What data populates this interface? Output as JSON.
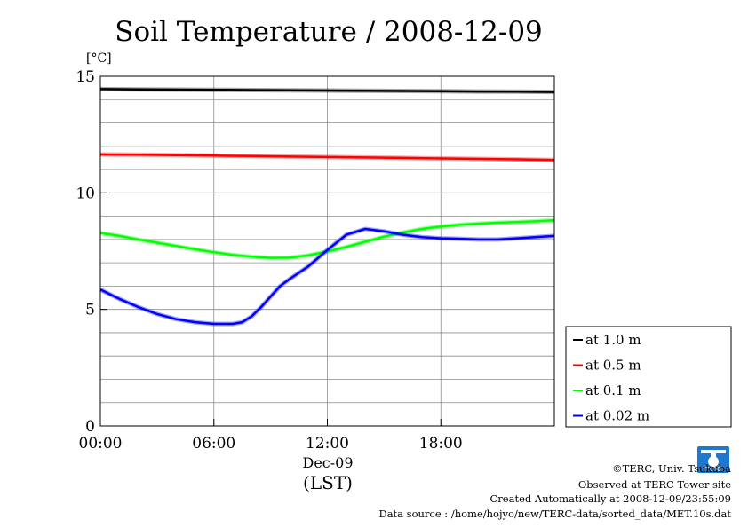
{
  "chart_data": {
    "type": "line",
    "title": "Soil Temperature / 2008-12-09",
    "ylabel": "[°C]",
    "xlabel_date": "Dec-09",
    "xlabel_unit": "(LST)",
    "xlim_hours": [
      0,
      24
    ],
    "ylim": [
      0,
      15
    ],
    "x_ticks": [
      {
        "hour": 0,
        "label": "00:00"
      },
      {
        "hour": 6,
        "label": "06:00"
      },
      {
        "hour": 12,
        "label": "12:00"
      },
      {
        "hour": 18,
        "label": "18:00"
      }
    ],
    "y_ticks": [
      {
        "value": 0,
        "label": "0"
      },
      {
        "value": 5,
        "label": "5"
      },
      {
        "value": 10,
        "label": "10"
      },
      {
        "value": 15,
        "label": "15"
      }
    ],
    "grid": true,
    "legend_placement": "right-bottom",
    "series": [
      {
        "name": "at 1.0 m",
        "color": "#000000",
        "x": [
          0,
          2,
          4,
          6,
          8,
          10,
          12,
          14,
          16,
          18,
          20,
          22,
          24
        ],
        "y": [
          14.45,
          14.44,
          14.43,
          14.42,
          14.41,
          14.4,
          14.39,
          14.38,
          14.37,
          14.36,
          14.35,
          14.34,
          14.33
        ]
      },
      {
        "name": "at 0.5 m",
        "color": "#ff0000",
        "x": [
          0,
          2,
          4,
          6,
          8,
          10,
          12,
          14,
          16,
          18,
          20,
          22,
          24
        ],
        "y": [
          11.65,
          11.64,
          11.62,
          11.6,
          11.58,
          11.56,
          11.54,
          11.52,
          11.5,
          11.48,
          11.46,
          11.44,
          11.41
        ]
      },
      {
        "name": "at 0.1 m",
        "color": "#00ff00",
        "x": [
          0,
          1,
          2,
          3,
          4,
          5,
          6,
          7,
          8,
          9,
          10,
          11,
          12,
          13,
          14,
          15,
          16,
          17,
          18,
          19,
          20,
          21,
          22,
          23,
          24
        ],
        "y": [
          8.28,
          8.15,
          8.0,
          7.86,
          7.72,
          7.58,
          7.45,
          7.34,
          7.26,
          7.21,
          7.22,
          7.32,
          7.48,
          7.68,
          7.9,
          8.12,
          8.3,
          8.45,
          8.56,
          8.63,
          8.68,
          8.72,
          8.75,
          8.78,
          8.82
        ]
      },
      {
        "name": "at 0.02 m",
        "color": "#0000ff",
        "x": [
          0,
          1,
          2,
          3,
          4,
          5,
          6,
          7,
          7.5,
          8,
          8.5,
          9,
          9.5,
          10,
          11,
          12,
          13,
          14,
          15,
          16,
          17,
          18,
          19,
          20,
          21,
          22,
          23,
          24
        ],
        "y": [
          5.85,
          5.45,
          5.1,
          4.8,
          4.58,
          4.45,
          4.38,
          4.38,
          4.45,
          4.7,
          5.1,
          5.55,
          6.0,
          6.3,
          6.85,
          7.55,
          8.2,
          8.45,
          8.35,
          8.2,
          8.1,
          8.05,
          8.03,
          8.0,
          8.0,
          8.05,
          8.1,
          8.15
        ]
      }
    ]
  },
  "footer": {
    "copyright": "©TERC, Univ. Tsukuba",
    "observed": "Observed at TERC Tower site",
    "created": "Created Automatically at 2008-12-09/23:55:09",
    "source": "Data source : /home/hojyo/new/TERC-data/sorted_data/MET.10s.dat"
  },
  "logo": {
    "text": "TERC",
    "color": "#1e78d0"
  }
}
